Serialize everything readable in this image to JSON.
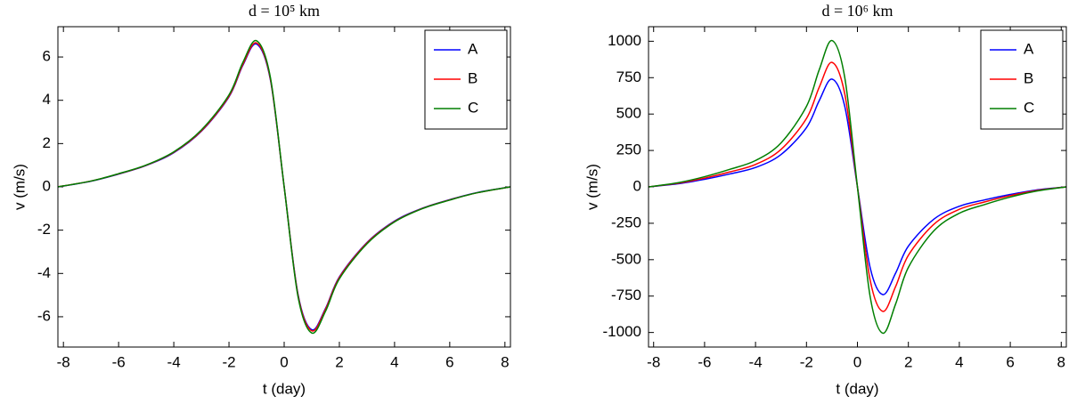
{
  "chart_data": [
    {
      "type": "line",
      "title": "d = 10⁵ km",
      "x_label": "t (day)",
      "y_label": "v (m/s)",
      "x": [
        -8.2,
        -7,
        -6,
        -5,
        -4,
        -3,
        -2,
        -1.5,
        -1,
        -0.5,
        0,
        0.5,
        1,
        1.5,
        2,
        3,
        4,
        5,
        6,
        7,
        8.2
      ],
      "series": [
        {
          "name": "A",
          "color": "#0000ff",
          "values": [
            0,
            0.26,
            0.59,
            0.99,
            1.58,
            2.57,
            4.16,
            5.61,
            6.6,
            4.95,
            0,
            -4.95,
            -6.6,
            -5.61,
            -4.16,
            -2.57,
            -1.58,
            -0.99,
            -0.59,
            -0.26,
            0
          ]
        },
        {
          "name": "B",
          "color": "#ff0000",
          "values": [
            0,
            0.27,
            0.6,
            1.0,
            1.6,
            2.59,
            4.19,
            5.65,
            6.65,
            4.99,
            0,
            -4.99,
            -6.65,
            -5.65,
            -4.19,
            -2.59,
            -1.6,
            -1.0,
            -0.6,
            -0.27,
            0
          ]
        },
        {
          "name": "C",
          "color": "#007f00",
          "values": [
            0,
            0.27,
            0.61,
            1.01,
            1.62,
            2.63,
            4.25,
            5.74,
            6.75,
            5.06,
            0,
            -5.06,
            -6.75,
            -5.74,
            -4.25,
            -2.63,
            -1.62,
            -1.01,
            -0.61,
            -0.27,
            0
          ]
        }
      ],
      "xlim": [
        -8.2,
        8.2
      ],
      "xticks": [
        -8,
        -6,
        -4,
        -2,
        0,
        2,
        4,
        6,
        8
      ],
      "ylim": [
        -7.4,
        7.4
      ],
      "yticks": [
        -6,
        -4,
        -2,
        0,
        2,
        4,
        6
      ],
      "legend": "upper right"
    },
    {
      "type": "line",
      "title": "d = 10⁶ km",
      "x_label": "t (day)",
      "y_label": "v (m/s)",
      "x": [
        -8.2,
        -7,
        -6,
        -5,
        -4,
        -3,
        -2,
        -1.5,
        -1,
        -0.5,
        0,
        0.5,
        1,
        1.5,
        2,
        3,
        4,
        5,
        6,
        7,
        8.2
      ],
      "series": [
        {
          "name": "A",
          "color": "#0000ff",
          "values": [
            0,
            22,
            52,
            89,
            133,
            222,
            407,
            592,
            740,
            555,
            0,
            -555,
            -740,
            -592,
            -407,
            -222,
            -133,
            -89,
            -52,
            -22,
            0
          ]
        },
        {
          "name": "B",
          "color": "#ff0000",
          "values": [
            0,
            26,
            60,
            103,
            154,
            257,
            470,
            684,
            855,
            641,
            0,
            -641,
            -855,
            -684,
            -470,
            -257,
            -154,
            -103,
            -60,
            -26,
            0
          ]
        },
        {
          "name": "C",
          "color": "#007f00",
          "values": [
            0,
            30,
            70,
            121,
            181,
            302,
            553,
            804,
            1005,
            754,
            0,
            -754,
            -1005,
            -804,
            -553,
            -302,
            -181,
            -121,
            -70,
            -30,
            0
          ]
        }
      ],
      "xlim": [
        -8.2,
        8.2
      ],
      "xticks": [
        -8,
        -6,
        -4,
        -2,
        0,
        2,
        4,
        6,
        8
      ],
      "ylim": [
        -1100,
        1100
      ],
      "yticks": [
        -1000,
        -750,
        -500,
        -250,
        0,
        250,
        500,
        750,
        1000
      ],
      "legend": "upper right"
    }
  ]
}
